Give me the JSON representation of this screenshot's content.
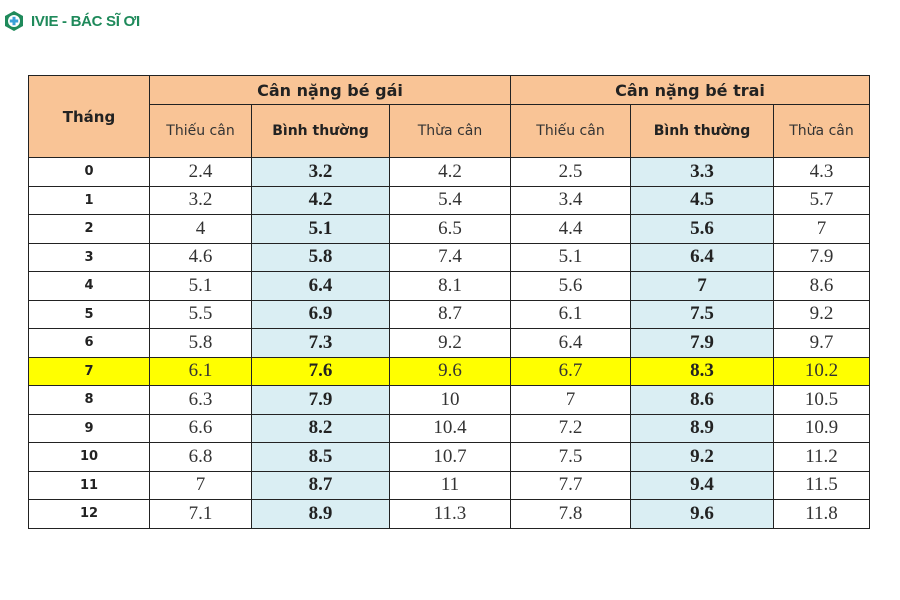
{
  "brand": {
    "name": "IVIE - BÁC SĨ ƠI",
    "logo_icon": "medical-cross-icon",
    "color": "#1f8a5b"
  },
  "table": {
    "month_header": "Tháng",
    "groups": [
      {
        "label": "Cân nặng bé gái"
      },
      {
        "label": "Cân nặng bé trai"
      }
    ],
    "sub_headers": [
      "Thiếu cân",
      "Bình thường",
      "Thừa cân",
      "Thiếu cân",
      "Bình thường",
      "Thừa cân"
    ],
    "highlight_row_month": "7",
    "colors": {
      "header_bg": "#f9c496",
      "normal_col_bg": "#daeef3",
      "highlight_bg": "#ffff00"
    },
    "rows": [
      {
        "month": "0",
        "girl": [
          "2.4",
          "3.2",
          "4.2"
        ],
        "boy": [
          "2.5",
          "3.3",
          "4.3"
        ]
      },
      {
        "month": "1",
        "girl": [
          "3.2",
          "4.2",
          "5.4"
        ],
        "boy": [
          "3.4",
          "4.5",
          "5.7"
        ]
      },
      {
        "month": "2",
        "girl": [
          "4",
          "5.1",
          "6.5"
        ],
        "boy": [
          "4.4",
          "5.6",
          "7"
        ]
      },
      {
        "month": "3",
        "girl": [
          "4.6",
          "5.8",
          "7.4"
        ],
        "boy": [
          "5.1",
          "6.4",
          "7.9"
        ]
      },
      {
        "month": "4",
        "girl": [
          "5.1",
          "6.4",
          "8.1"
        ],
        "boy": [
          "5.6",
          "7",
          "8.6"
        ]
      },
      {
        "month": "5",
        "girl": [
          "5.5",
          "6.9",
          "8.7"
        ],
        "boy": [
          "6.1",
          "7.5",
          "9.2"
        ]
      },
      {
        "month": "6",
        "girl": [
          "5.8",
          "7.3",
          "9.2"
        ],
        "boy": [
          "6.4",
          "7.9",
          "9.7"
        ]
      },
      {
        "month": "7",
        "girl": [
          "6.1",
          "7.6",
          "9.6"
        ],
        "boy": [
          "6.7",
          "8.3",
          "10.2"
        ]
      },
      {
        "month": "8",
        "girl": [
          "6.3",
          "7.9",
          "10"
        ],
        "boy": [
          "7",
          "8.6",
          "10.5"
        ]
      },
      {
        "month": "9",
        "girl": [
          "6.6",
          "8.2",
          "10.4"
        ],
        "boy": [
          "7.2",
          "8.9",
          "10.9"
        ]
      },
      {
        "month": "10",
        "girl": [
          "6.8",
          "8.5",
          "10.7"
        ],
        "boy": [
          "7.5",
          "9.2",
          "11.2"
        ]
      },
      {
        "month": "11",
        "girl": [
          "7",
          "8.7",
          "11"
        ],
        "boy": [
          "7.7",
          "9.4",
          "11.5"
        ]
      },
      {
        "month": "12",
        "girl": [
          "7.1",
          "8.9",
          "11.3"
        ],
        "boy": [
          "7.8",
          "9.6",
          "11.8"
        ]
      }
    ]
  }
}
